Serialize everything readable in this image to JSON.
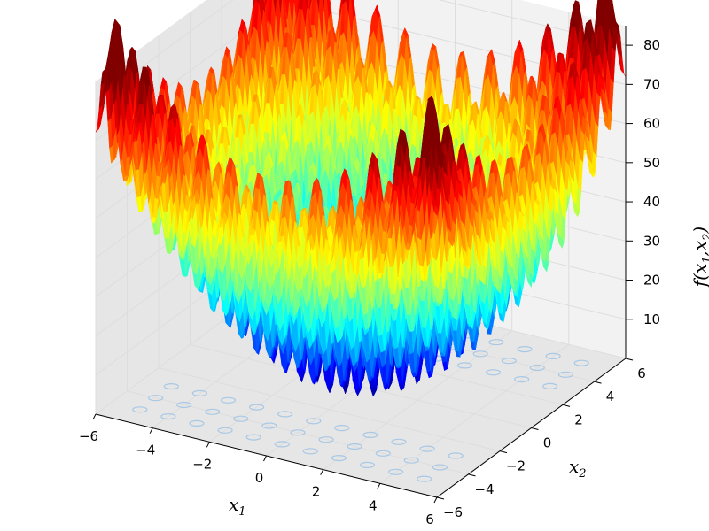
{
  "chart_data": {
    "type": "surface3d",
    "title": "",
    "xlabel": "x",
    "xlabel_sub": "1",
    "ylabel": "x",
    "ylabel_sub": "2",
    "zlabel": "f(x",
    "zlabel_sub1": "1",
    "zlabel_mid": ",x",
    "zlabel_sub2": "2",
    "zlabel_end": ")",
    "x_ticks": [
      "−6",
      "−4",
      "−2",
      "0",
      "2",
      "4",
      "6"
    ],
    "y_ticks": [
      "−6",
      "−4",
      "−2",
      "0",
      "2",
      "4",
      "6"
    ],
    "z_ticks": [
      "10",
      "20",
      "30",
      "40",
      "50",
      "60",
      "70",
      "80"
    ],
    "xlim": [
      -6,
      6
    ],
    "ylim": [
      -6,
      6
    ],
    "zlim": [
      0,
      85
    ],
    "function": "Rastrigin-like: 20 + x1^2 + x2^2 - 10(cos 2πx1 + cos 2πx2)",
    "colormap": "jet",
    "grid": true,
    "contour_floor": true,
    "colors": {
      "pane": "#f2f2f2",
      "pane_dark": "#e6e6e6",
      "grid": "#dddddd",
      "contour": "#a8c8e6"
    }
  }
}
